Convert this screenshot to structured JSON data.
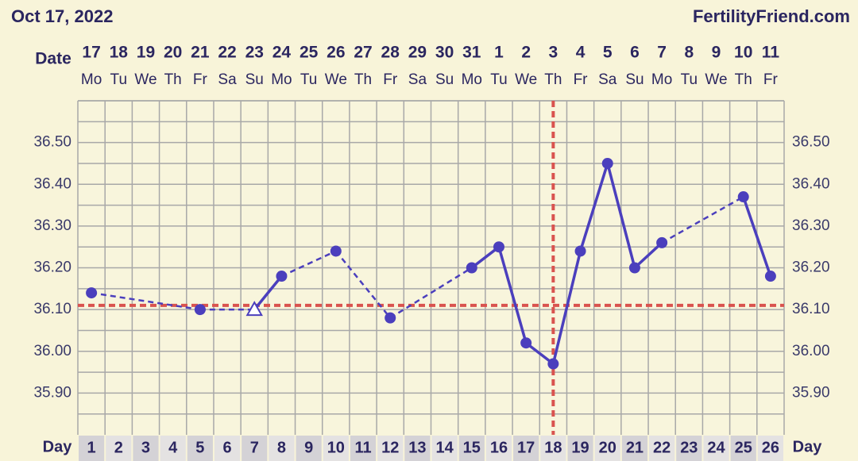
{
  "chart_data": {
    "type": "line",
    "title": "Oct 17, 2022",
    "brand": "FertilityFriend.com",
    "date_label": "Date",
    "x_label": "Day",
    "x": [
      1,
      2,
      3,
      4,
      5,
      6,
      7,
      8,
      9,
      10,
      11,
      12,
      13,
      14,
      15,
      16,
      17,
      18,
      19,
      20,
      21,
      22,
      23,
      24,
      25,
      26
    ],
    "dates": [
      17,
      18,
      19,
      20,
      21,
      22,
      23,
      24,
      25,
      26,
      27,
      28,
      29,
      30,
      31,
      1,
      2,
      3,
      4,
      5,
      6,
      7,
      8,
      9,
      10,
      11
    ],
    "weekdays": [
      "Mo",
      "Tu",
      "We",
      "Th",
      "Fr",
      "Sa",
      "Su",
      "Mo",
      "Tu",
      "We",
      "Th",
      "Fr",
      "Sa",
      "Su",
      "Mo",
      "Tu",
      "We",
      "Th",
      "Fr",
      "Sa",
      "Su",
      "Mo",
      "Tu",
      "We",
      "Th",
      "Fr"
    ],
    "series": [
      {
        "color": "#4b3fbd",
        "values": [
          36.14,
          null,
          null,
          null,
          36.1,
          null,
          36.1,
          36.18,
          null,
          36.24,
          null,
          36.08,
          null,
          null,
          36.2,
          36.25,
          36.02,
          35.97,
          36.24,
          36.45,
          36.2,
          36.26,
          null,
          null,
          36.37,
          36.18
        ],
        "markers": [
          "circle",
          null,
          null,
          null,
          "circle",
          null,
          "open-triangle",
          "circle",
          null,
          "circle",
          null,
          "circle",
          null,
          null,
          "circle",
          "circle",
          "circle",
          "circle",
          "circle",
          "circle",
          "circle",
          "circle",
          null,
          null,
          "circle",
          "circle"
        ]
      }
    ],
    "ylim": [
      35.8,
      36.6
    ],
    "yticks": [
      {
        "value": 35.9,
        "label": "35.90"
      },
      {
        "value": 36.0,
        "label": "36.00"
      },
      {
        "value": 36.1,
        "label": "36.10"
      },
      {
        "value": 36.2,
        "label": "36.20"
      },
      {
        "value": 36.3,
        "label": "36.30"
      },
      {
        "value": 36.4,
        "label": "36.40"
      },
      {
        "value": 36.5,
        "label": "36.50"
      }
    ],
    "cover_line": 36.11,
    "ovulation_day": 18,
    "reference_color": "#d9534f",
    "grid": true
  }
}
